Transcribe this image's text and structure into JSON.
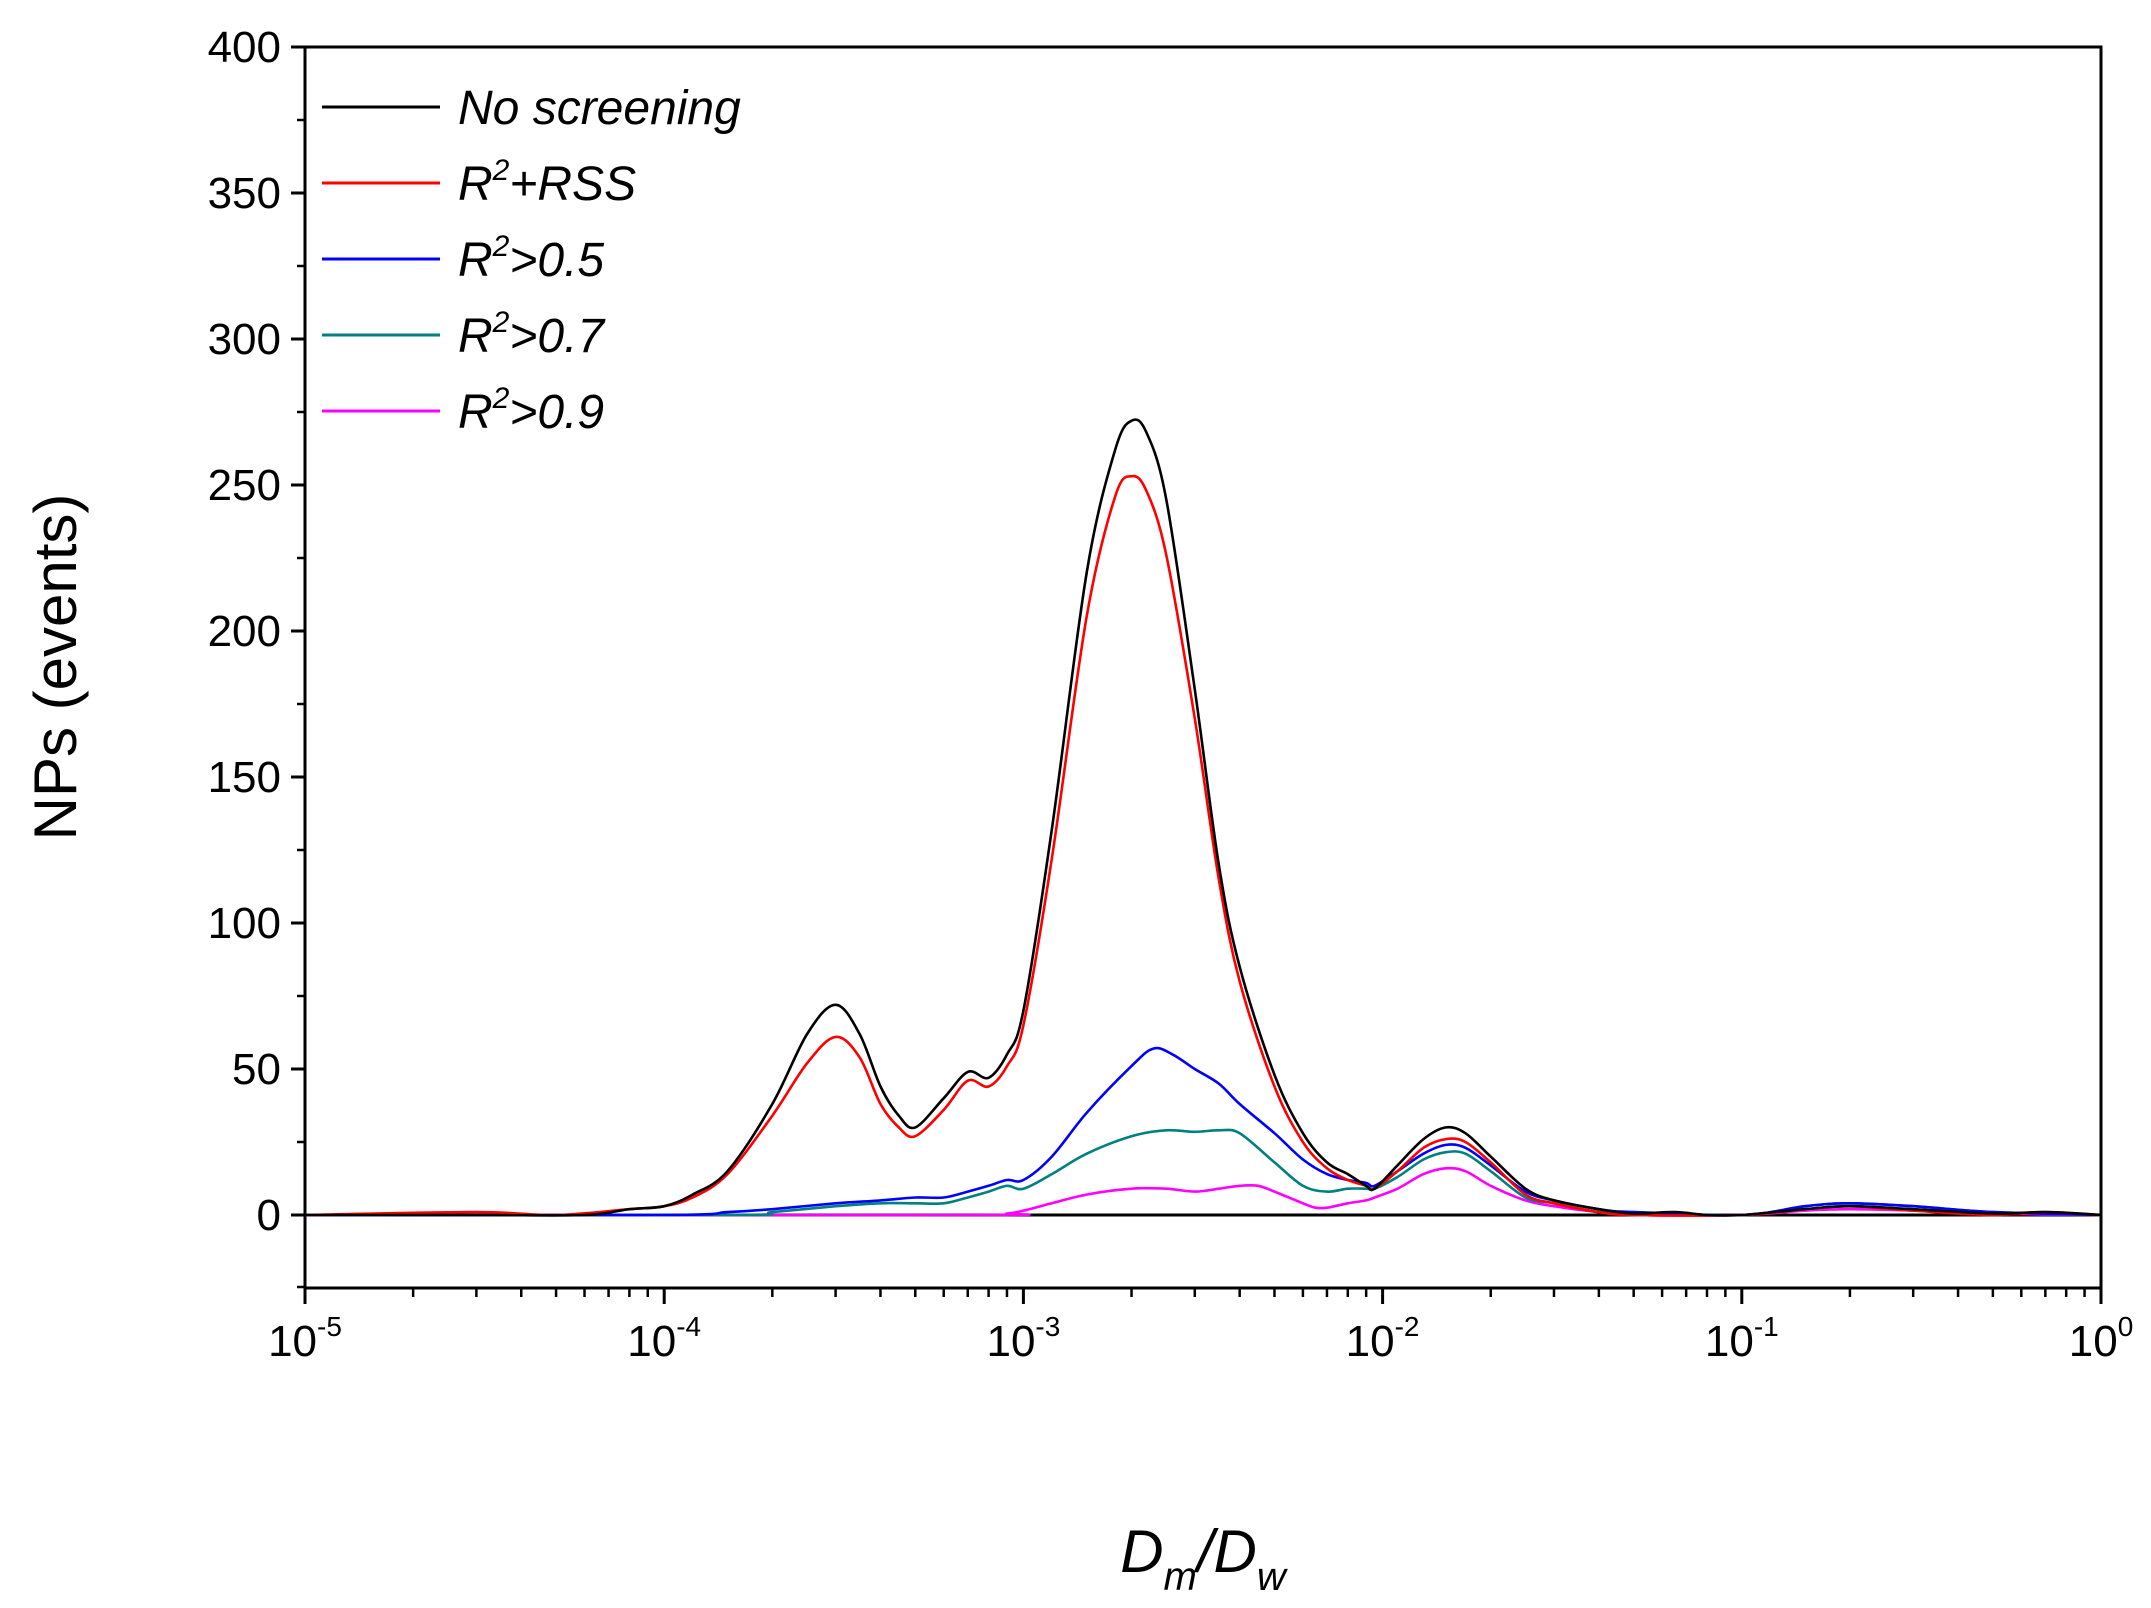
{
  "chart_data": {
    "type": "line",
    "title": "",
    "xlabel": {
      "main": "D",
      "sub1": "m",
      "sep": "/",
      "main2": "D",
      "sub2": "w"
    },
    "ylabel": "NPs (events)",
    "xscale": "log",
    "xlim": [
      1e-05,
      1
    ],
    "ylim": [
      -25,
      400
    ],
    "yticks": [
      0,
      50,
      100,
      150,
      200,
      250,
      300,
      350,
      400
    ],
    "xticks": [
      {
        "value": 1e-05,
        "base": "10",
        "exp": "-5"
      },
      {
        "value": 0.0001,
        "base": "10",
        "exp": "-4"
      },
      {
        "value": 0.001,
        "base": "10",
        "exp": "-3"
      },
      {
        "value": 0.01,
        "base": "10",
        "exp": "-2"
      },
      {
        "value": 0.1,
        "base": "10",
        "exp": "-1"
      },
      {
        "value": 1,
        "base": "10",
        "exp": "0"
      }
    ],
    "legend_position": "top-left",
    "series": [
      {
        "name": "No screening",
        "legend": {
          "base": "No screening",
          "sup": "",
          "rest": ""
        },
        "color": "#000000",
        "points": [
          [
            1e-05,
            0
          ],
          [
            3e-05,
            0
          ],
          [
            6e-05,
            0
          ],
          [
            8e-05,
            2
          ],
          [
            0.0001,
            3
          ],
          [
            0.00012,
            7
          ],
          [
            0.00015,
            15
          ],
          [
            0.0002,
            38
          ],
          [
            0.00025,
            62
          ],
          [
            0.0003,
            72
          ],
          [
            0.00035,
            62
          ],
          [
            0.0004,
            44
          ],
          [
            0.00045,
            34
          ],
          [
            0.0005,
            30
          ],
          [
            0.0006,
            40
          ],
          [
            0.0007,
            49
          ],
          [
            0.0008,
            47
          ],
          [
            0.0009,
            55
          ],
          [
            0.001,
            70
          ],
          [
            0.0012,
            132
          ],
          [
            0.0015,
            220
          ],
          [
            0.0018,
            262
          ],
          [
            0.002,
            272
          ],
          [
            0.0022,
            268
          ],
          [
            0.0025,
            245
          ],
          [
            0.003,
            180
          ],
          [
            0.0035,
            120
          ],
          [
            0.004,
            85
          ],
          [
            0.005,
            48
          ],
          [
            0.006,
            28
          ],
          [
            0.007,
            18
          ],
          [
            0.008,
            14
          ],
          [
            0.009,
            10
          ],
          [
            0.0095,
            9
          ],
          [
            0.011,
            17
          ],
          [
            0.013,
            26
          ],
          [
            0.015,
            30
          ],
          [
            0.017,
            28
          ],
          [
            0.02,
            20
          ],
          [
            0.025,
            9
          ],
          [
            0.03,
            5
          ],
          [
            0.04,
            2
          ],
          [
            0.05,
            0.5
          ],
          [
            0.065,
            1
          ],
          [
            0.08,
            0
          ],
          [
            0.1,
            0
          ],
          [
            0.15,
            2
          ],
          [
            0.2,
            3
          ],
          [
            0.3,
            2
          ],
          [
            0.5,
            0.5
          ],
          [
            0.7,
            1
          ],
          [
            1,
            0
          ]
        ]
      },
      {
        "name": "R2+RSS",
        "legend": {
          "base": "R",
          "sup": "2",
          "rest": "+RSS"
        },
        "color": "#ff0000",
        "points": [
          [
            1e-05,
            0
          ],
          [
            3e-05,
            1
          ],
          [
            5e-05,
            0
          ],
          [
            8e-05,
            2
          ],
          [
            0.0001,
            3
          ],
          [
            0.00012,
            6
          ],
          [
            0.00015,
            14
          ],
          [
            0.0002,
            34
          ],
          [
            0.00025,
            52
          ],
          [
            0.0003,
            61
          ],
          [
            0.00035,
            54
          ],
          [
            0.0004,
            38
          ],
          [
            0.00045,
            30
          ],
          [
            0.0005,
            27
          ],
          [
            0.0006,
            36
          ],
          [
            0.0007,
            46
          ],
          [
            0.0008,
            44
          ],
          [
            0.0009,
            51
          ],
          [
            0.001,
            65
          ],
          [
            0.0012,
            122
          ],
          [
            0.0015,
            205
          ],
          [
            0.0018,
            246
          ],
          [
            0.002,
            253
          ],
          [
            0.0022,
            248
          ],
          [
            0.0025,
            226
          ],
          [
            0.003,
            170
          ],
          [
            0.0035,
            115
          ],
          [
            0.004,
            80
          ],
          [
            0.005,
            44
          ],
          [
            0.006,
            25
          ],
          [
            0.007,
            16
          ],
          [
            0.008,
            12
          ],
          [
            0.009,
            10
          ],
          [
            0.0095,
            9
          ],
          [
            0.011,
            15
          ],
          [
            0.013,
            23
          ],
          [
            0.015,
            26
          ],
          [
            0.017,
            25
          ],
          [
            0.02,
            18
          ],
          [
            0.025,
            7
          ],
          [
            0.03,
            4
          ],
          [
            0.04,
            1
          ],
          [
            0.05,
            0
          ],
          [
            0.1,
            0
          ],
          [
            0.15,
            2
          ],
          [
            0.2,
            3
          ],
          [
            0.3,
            1.5
          ],
          [
            0.5,
            0
          ],
          [
            0.7,
            1
          ],
          [
            1,
            0
          ]
        ]
      },
      {
        "name": "R2>0.5",
        "legend": {
          "base": "R",
          "sup": "2",
          "rest": ">0.5"
        },
        "color": "#0000ff",
        "points": [
          [
            1e-05,
            0
          ],
          [
            0.0001,
            0
          ],
          [
            0.00015,
            1
          ],
          [
            0.0002,
            2
          ],
          [
            0.0003,
            4
          ],
          [
            0.0004,
            5
          ],
          [
            0.0005,
            6
          ],
          [
            0.0006,
            6
          ],
          [
            0.0007,
            8
          ],
          [
            0.0008,
            10
          ],
          [
            0.0009,
            12
          ],
          [
            0.001,
            12
          ],
          [
            0.0012,
            20
          ],
          [
            0.0015,
            35
          ],
          [
            0.002,
            51
          ],
          [
            0.0023,
            57
          ],
          [
            0.0026,
            55
          ],
          [
            0.003,
            50
          ],
          [
            0.0035,
            45
          ],
          [
            0.004,
            38
          ],
          [
            0.005,
            28
          ],
          [
            0.006,
            19
          ],
          [
            0.007,
            14
          ],
          [
            0.008,
            12
          ],
          [
            0.009,
            11
          ],
          [
            0.0095,
            10
          ],
          [
            0.011,
            15
          ],
          [
            0.013,
            21
          ],
          [
            0.015,
            24
          ],
          [
            0.017,
            23
          ],
          [
            0.02,
            17
          ],
          [
            0.025,
            8
          ],
          [
            0.03,
            5
          ],
          [
            0.04,
            2
          ],
          [
            0.05,
            1
          ],
          [
            0.1,
            0
          ],
          [
            0.15,
            3
          ],
          [
            0.2,
            4
          ],
          [
            0.3,
            3
          ],
          [
            0.5,
            1
          ],
          [
            1,
            0
          ]
        ]
      },
      {
        "name": "R2>0.7",
        "legend": {
          "base": "R",
          "sup": "2",
          "rest": ">0.7"
        },
        "color": "#008080",
        "points": [
          [
            1e-05,
            0
          ],
          [
            0.00015,
            0
          ],
          [
            0.0002,
            1
          ],
          [
            0.0003,
            3
          ],
          [
            0.0004,
            4
          ],
          [
            0.0005,
            4
          ],
          [
            0.0006,
            4
          ],
          [
            0.0007,
            6
          ],
          [
            0.0008,
            8
          ],
          [
            0.0009,
            10
          ],
          [
            0.001,
            9
          ],
          [
            0.0012,
            14
          ],
          [
            0.0015,
            21
          ],
          [
            0.002,
            27
          ],
          [
            0.0025,
            29
          ],
          [
            0.003,
            28.5
          ],
          [
            0.0035,
            29
          ],
          [
            0.004,
            28
          ],
          [
            0.005,
            18
          ],
          [
            0.006,
            10
          ],
          [
            0.007,
            8
          ],
          [
            0.008,
            9
          ],
          [
            0.009,
            9
          ],
          [
            0.0095,
            9
          ],
          [
            0.011,
            13
          ],
          [
            0.013,
            19
          ],
          [
            0.015,
            21.5
          ],
          [
            0.017,
            21
          ],
          [
            0.02,
            15
          ],
          [
            0.025,
            6
          ],
          [
            0.03,
            4
          ],
          [
            0.04,
            1
          ],
          [
            0.05,
            1
          ],
          [
            0.1,
            0
          ],
          [
            0.15,
            3
          ],
          [
            0.2,
            4
          ],
          [
            0.3,
            3
          ],
          [
            0.5,
            1
          ],
          [
            1,
            0
          ]
        ]
      },
      {
        "name": "R2>0.9",
        "legend": {
          "base": "R",
          "sup": "2",
          "rest": ">0.9"
        },
        "color": "#ff00ff",
        "points": [
          [
            1e-05,
            0
          ],
          [
            0.0007,
            0
          ],
          [
            0.0009,
            0.5
          ],
          [
            0.001,
            1.5
          ],
          [
            0.0012,
            4
          ],
          [
            0.0015,
            7
          ],
          [
            0.002,
            9
          ],
          [
            0.0025,
            9
          ],
          [
            0.003,
            8
          ],
          [
            0.0035,
            9
          ],
          [
            0.004,
            10
          ],
          [
            0.0045,
            10
          ],
          [
            0.005,
            8
          ],
          [
            0.006,
            4
          ],
          [
            0.0065,
            2.5
          ],
          [
            0.007,
            2.5
          ],
          [
            0.008,
            4
          ],
          [
            0.009,
            5
          ],
          [
            0.0095,
            6
          ],
          [
            0.011,
            9
          ],
          [
            0.013,
            14
          ],
          [
            0.015,
            16
          ],
          [
            0.017,
            15
          ],
          [
            0.02,
            10
          ],
          [
            0.025,
            5
          ],
          [
            0.03,
            3
          ],
          [
            0.04,
            1
          ],
          [
            0.05,
            0
          ],
          [
            0.1,
            0
          ],
          [
            0.15,
            1.5
          ],
          [
            0.2,
            2
          ],
          [
            0.3,
            1.5
          ],
          [
            0.5,
            0.5
          ],
          [
            1,
            0
          ]
        ]
      }
    ]
  }
}
